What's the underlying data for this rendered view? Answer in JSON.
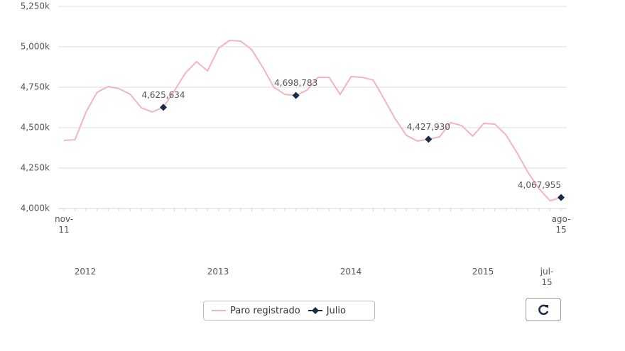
{
  "chart_data": {
    "type": "line",
    "categories": [
      "nov-11",
      null,
      null,
      null,
      null,
      null,
      null,
      null,
      null,
      null,
      null,
      null,
      null,
      null,
      null,
      null,
      null,
      null,
      null,
      null,
      null,
      null,
      null,
      null,
      null,
      null,
      null,
      null,
      null,
      null,
      null,
      null,
      null,
      null,
      null,
      null,
      null,
      null,
      null,
      null,
      null,
      null,
      null,
      null,
      null,
      "ago-15"
    ],
    "series": [
      {
        "name": "Paro registrado",
        "color": "#f2b5c0",
        "values": [
          4421000,
          4425000,
          4596000,
          4719000,
          4754000,
          4741000,
          4706000,
          4623000,
          4597000,
          4625634,
          4728000,
          4838000,
          4908000,
          4851000,
          4991000,
          5040000,
          5035000,
          4982000,
          4873000,
          4750000,
          4706000,
          4698783,
          4732000,
          4811000,
          4811000,
          4706000,
          4816000,
          4811000,
          4794000,
          4675000,
          4553000,
          4452000,
          4417000,
          4427930,
          4443000,
          4531000,
          4513000,
          4447000,
          4526000,
          4522000,
          4456000,
          4346000,
          4224000,
          4123000,
          4048000,
          4067955
        ]
      },
      {
        "name": "Julio",
        "color": "#1b2a45",
        "values": [
          null,
          null,
          null,
          null,
          null,
          null,
          null,
          null,
          null,
          4625634,
          null,
          null,
          null,
          null,
          null,
          null,
          null,
          null,
          null,
          null,
          null,
          4698783,
          null,
          null,
          null,
          null,
          null,
          null,
          null,
          null,
          null,
          null,
          null,
          4427930,
          null,
          null,
          null,
          null,
          null,
          null,
          null,
          null,
          null,
          null,
          null,
          4067955
        ],
        "value_labels": [
          null,
          null,
          null,
          null,
          null,
          null,
          null,
          null,
          null,
          "4,625,634",
          null,
          null,
          null,
          null,
          null,
          null,
          null,
          null,
          null,
          null,
          null,
          "4,698,783",
          null,
          null,
          null,
          null,
          null,
          null,
          null,
          null,
          null,
          null,
          null,
          "4,427,930",
          null,
          null,
          null,
          null,
          null,
          null,
          null,
          null,
          null,
          null,
          null,
          "4,067,955"
        ]
      }
    ],
    "ylim": [
      4000000,
      5250000
    ],
    "yticks": [
      {
        "value": 4000000,
        "label": "4,000k"
      },
      {
        "value": 4250000,
        "label": "4,250k"
      },
      {
        "value": 4500000,
        "label": "4,500k"
      },
      {
        "value": 4750000,
        "label": "4,750k"
      },
      {
        "value": 5000000,
        "label": "5,000k"
      },
      {
        "value": 5250000,
        "label": "5,250k"
      }
    ],
    "grid": true,
    "navigator": {
      "labels": [
        "2012",
        "2013",
        "2014",
        "2015",
        "jul-15"
      ]
    }
  }
}
